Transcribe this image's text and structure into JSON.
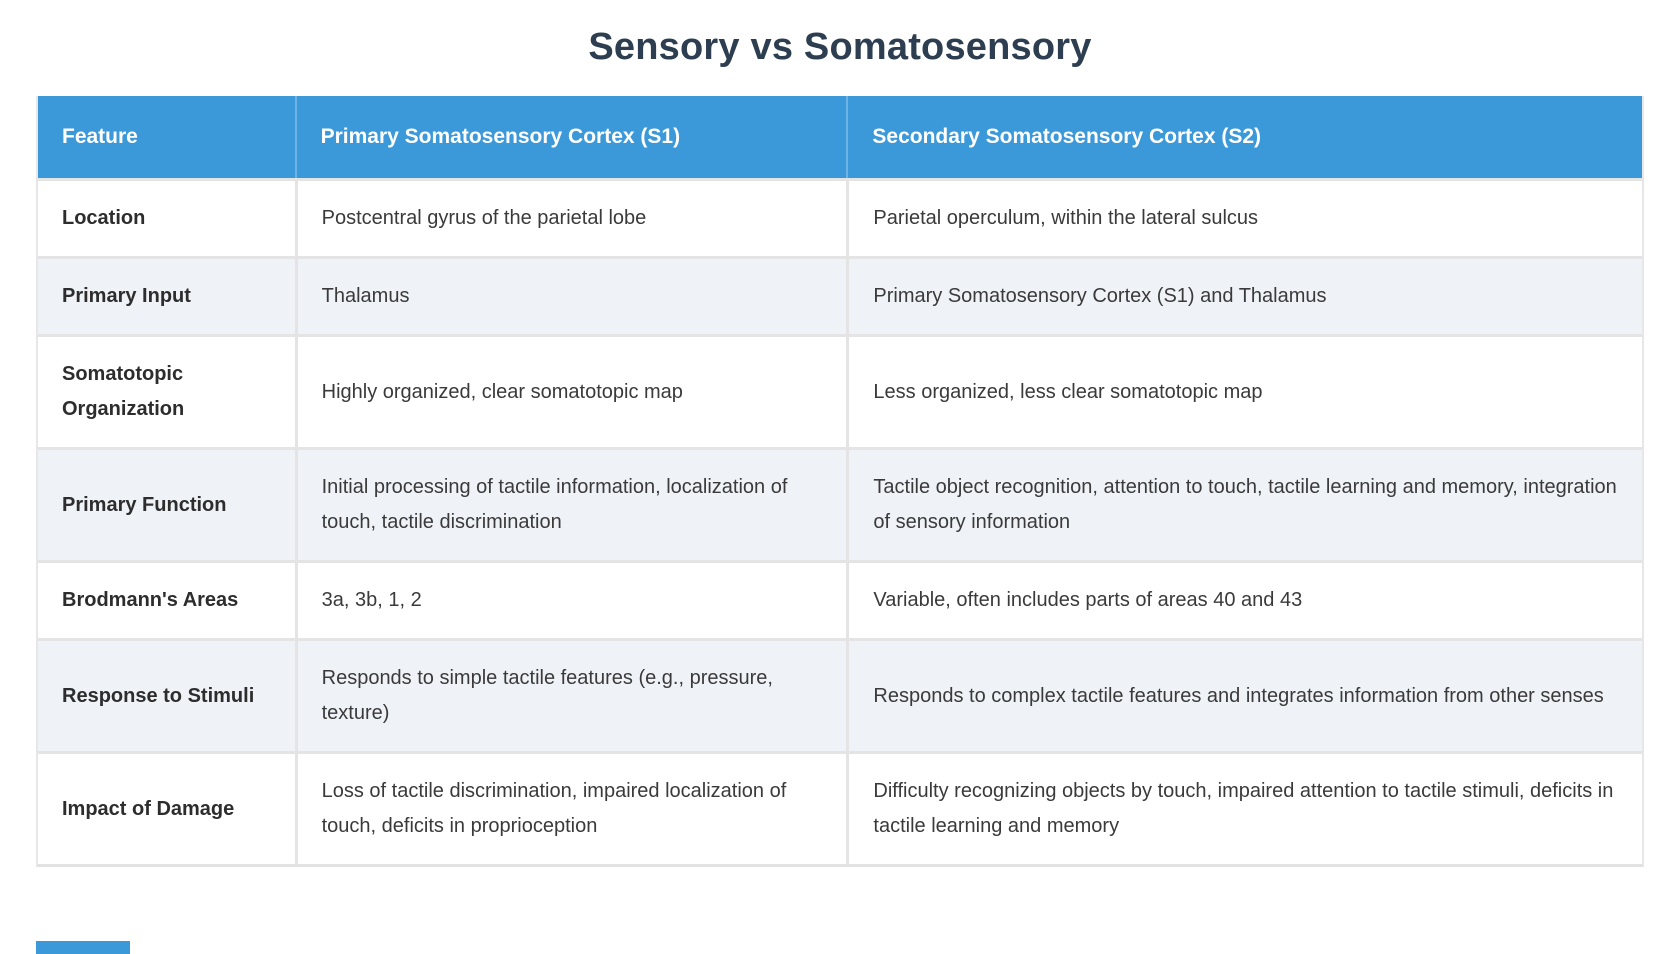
{
  "title": "Sensory vs Somatosensory",
  "table": {
    "columns": [
      "Feature",
      "Primary Somatosensory Cortex (S1)",
      "Secondary Somatosensory Cortex (S2)"
    ],
    "rows": [
      {
        "feature": "Location",
        "s1": "Postcentral gyrus of the parietal lobe",
        "s2": "Parietal operculum, within the lateral sulcus"
      },
      {
        "feature": "Primary Input",
        "s1": "Thalamus",
        "s2": "Primary Somatosensory Cortex (S1) and Thalamus"
      },
      {
        "feature": "Somatotopic Organization",
        "s1": "Highly organized, clear somatotopic map",
        "s2": "Less organized, less clear somatotopic map"
      },
      {
        "feature": "Primary Function",
        "s1": "Initial processing of tactile information, localization of touch, tactile discrimination",
        "s2": "Tactile object recognition, attention to touch, tactile learning and memory, integration of sensory information"
      },
      {
        "feature": "Brodmann's Areas",
        "s1": "3a, 3b, 1, 2",
        "s2": "Variable, often includes parts of areas 40 and 43"
      },
      {
        "feature": "Response to Stimuli",
        "s1": "Responds to simple tactile features (e.g., pressure, texture)",
        "s2": "Responds to complex tactile features and integrates information from other senses"
      },
      {
        "feature": "Impact of Damage",
        "s1": "Loss of tactile discrimination, impaired localization of touch, deficits in proprioception",
        "s2": "Difficulty recognizing objects by touch, impaired attention to tactile stimuli, deficits in tactile learning and memory"
      }
    ]
  },
  "colors": {
    "header_bg": "#3b99da",
    "header_divider": "#6db3e4",
    "header_text": "#ffffff",
    "row_alt_bg": "#eff3f8",
    "cell_border": "#e4e4e4",
    "title_text": "#2c3e50",
    "body_text": "#3a3a3a",
    "feature_text": "#2d2d2d"
  },
  "partials": {
    "next_table_header_visible": true
  }
}
